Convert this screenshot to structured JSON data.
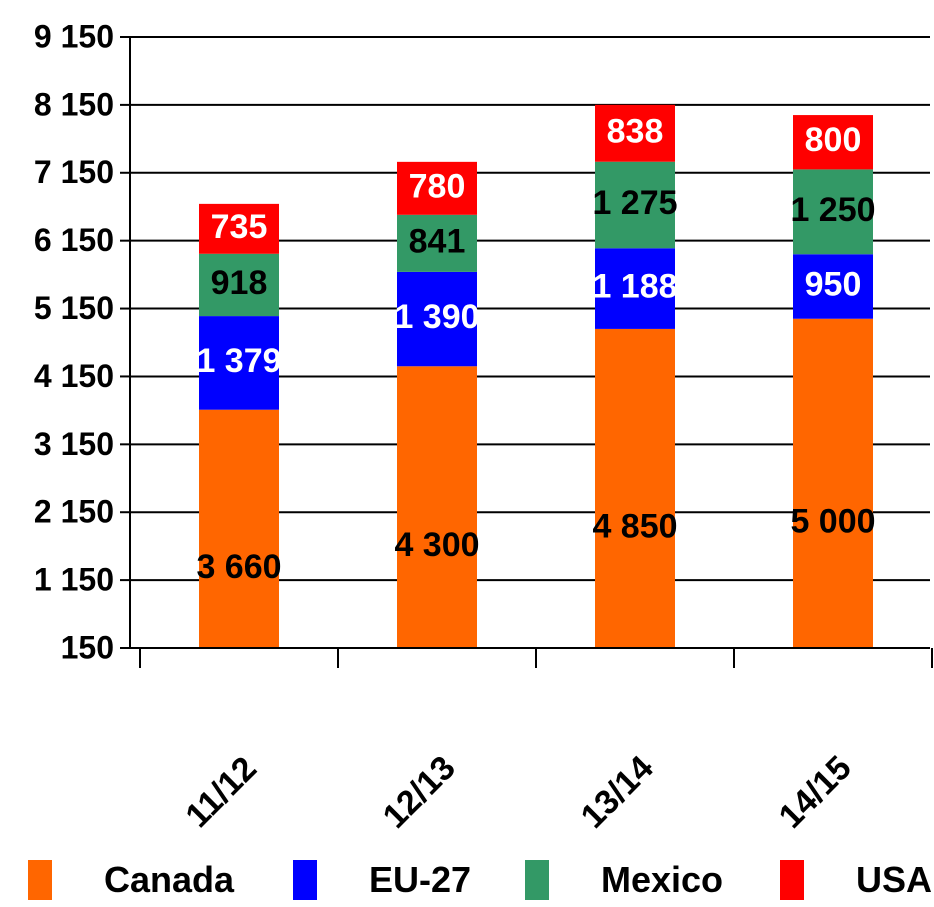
{
  "chart_data": {
    "type": "bar",
    "stacked": true,
    "categories": [
      "11/12",
      "12/13",
      "13/14",
      "14/15"
    ],
    "series": [
      {
        "name": "Canada",
        "color": "#FF6600",
        "label_color": "#000000",
        "values": [
          3660,
          4300,
          4850,
          5000
        ],
        "labels": [
          "3 660",
          "4 300",
          "4 850",
          "5 000"
        ]
      },
      {
        "name": "EU-27",
        "color": "#0000FF",
        "label_color": "#FFFFFF",
        "values": [
          1379,
          1390,
          1188,
          950
        ],
        "labels": [
          "1 379",
          "1 390",
          "1 188",
          "950"
        ]
      },
      {
        "name": "Mexico",
        "color": "#339966",
        "label_color": "#000000",
        "values": [
          918,
          841,
          1275,
          1250
        ],
        "labels": [
          "918",
          "841",
          "1 275",
          "1 250"
        ]
      },
      {
        "name": "USA",
        "color": "#FF0000",
        "label_color": "#FFFFFF",
        "values": [
          735,
          780,
          838,
          800
        ],
        "labels": [
          "735",
          "780",
          "838",
          "800"
        ]
      }
    ],
    "y_ticks": [
      150,
      1150,
      2150,
      3150,
      4150,
      5150,
      6150,
      7150,
      8150,
      9150
    ],
    "y_tick_labels": [
      "150",
      "1 150",
      "2 150",
      "3 150",
      "4 150",
      "5 150",
      "6 150",
      "7 150",
      "8 150",
      "9 150"
    ],
    "ylim": [
      150,
      9150
    ],
    "grid": "horizontal",
    "legend_position": "bottom"
  }
}
